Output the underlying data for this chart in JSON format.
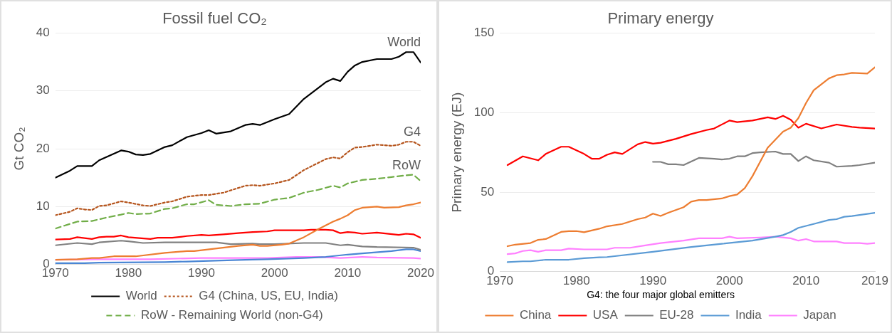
{
  "chart_data": [
    {
      "type": "line",
      "title": "Fossil fuel CO₂",
      "ylabel": "Gt CO₂",
      "xlim": [
        1970,
        2020
      ],
      "xticks": [
        1970,
        1980,
        1990,
        2000,
        2010,
        2020
      ],
      "ylim": [
        0,
        40
      ],
      "yticks": [
        0,
        10,
        20,
        30,
        40
      ],
      "grid": "y",
      "legend": "bottom",
      "marker": "none",
      "annotations": [
        "World",
        "G4",
        "RoW"
      ],
      "series": [
        {
          "name": "World",
          "color": "#000000",
          "line_style": "solid",
          "x": [
            1970,
            1972,
            1973,
            1975,
            1976,
            1979,
            1980,
            1981,
            1982,
            1983,
            1985,
            1986,
            1988,
            1990,
            1991,
            1992,
            1994,
            1996,
            1997,
            1998,
            2000,
            2002,
            2004,
            2007,
            2008,
            2009,
            2010,
            2011,
            2012,
            2014,
            2016,
            2017,
            2018,
            2019,
            2020
          ],
          "values": [
            15,
            16.2,
            17,
            17,
            18,
            19.7,
            19.5,
            19,
            18.9,
            19.1,
            20.3,
            20.6,
            22,
            22.7,
            23.2,
            22.6,
            23,
            24.1,
            24.3,
            24.1,
            25.1,
            26,
            28.6,
            31.5,
            32.1,
            31.7,
            33.3,
            34.4,
            35,
            35.5,
            35.5,
            35.9,
            36.7,
            36.7,
            34.9
          ]
        },
        {
          "name": "G4 (China, US, EU, India)",
          "color": "#b5541c",
          "line_style": "dotted",
          "x": [
            1970,
            1972,
            1973,
            1974,
            1975,
            1976,
            1977,
            1979,
            1980,
            1982,
            1983,
            1985,
            1986,
            1988,
            1990,
            1991,
            1993,
            1996,
            1997,
            1998,
            2000,
            2002,
            2004,
            2007,
            2008,
            2009,
            2010,
            2011,
            2012,
            2014,
            2016,
            2017,
            2018,
            2019,
            2020
          ],
          "values": [
            8.5,
            9.1,
            9.7,
            9.5,
            9.4,
            10.1,
            10.2,
            10.9,
            10.7,
            10.2,
            10.1,
            10.7,
            10.9,
            11.7,
            12,
            12,
            12.4,
            13.6,
            13.7,
            13.6,
            14,
            14.6,
            16.3,
            18.2,
            18.5,
            18.3,
            19.4,
            20.2,
            20.3,
            20.7,
            20.5,
            20.7,
            21.2,
            21.2,
            20.5
          ]
        },
        {
          "name": "RoW - Remaining World (non-G4)",
          "color": "#70ad47",
          "line_style": "dashed",
          "x": [
            1970,
            1972,
            1973,
            1975,
            1977,
            1979,
            1980,
            1981,
            1983,
            1985,
            1986,
            1988,
            1989,
            1991,
            1992,
            1994,
            1996,
            1998,
            2000,
            2002,
            2004,
            2006,
            2008,
            2009,
            2010,
            2012,
            2014,
            2016,
            2018,
            2019,
            2020
          ],
          "values": [
            6.2,
            7,
            7.4,
            7.5,
            8.1,
            8.6,
            8.9,
            8.7,
            8.8,
            9.6,
            9.7,
            10.4,
            10.4,
            11.1,
            10.3,
            10.1,
            10.4,
            10.5,
            11.2,
            11.5,
            12.4,
            12.9,
            13.6,
            13.3,
            14,
            14.6,
            14.8,
            15.1,
            15.4,
            15.5,
            14.4
          ]
        },
        {
          "color": "#ed7d31",
          "line_style": "solid",
          "x": [
            1970,
            1973,
            1975,
            1976,
            1978,
            1981,
            1985,
            1988,
            1989,
            1995,
            1997,
            1998,
            1999,
            2001,
            2002,
            2004,
            2006,
            2008,
            2009,
            2010,
            2011,
            2012,
            2014,
            2015,
            2017,
            2018,
            2019,
            2020
          ],
          "values": [
            0.8,
            0.9,
            1.1,
            1.1,
            1.4,
            1.4,
            2,
            2.3,
            2.3,
            3.2,
            3.4,
            3.2,
            3.2,
            3.4,
            3.6,
            4.7,
            6.1,
            7.4,
            7.9,
            8.5,
            9.4,
            9.8,
            10,
            9.8,
            9.9,
            10.2,
            10.4,
            10.7
          ]
        },
        {
          "color": "#ff0000",
          "line_style": "solid",
          "x": [
            1970,
            1972,
            1973,
            1975,
            1976,
            1977,
            1978,
            1979,
            1980,
            1983,
            1984,
            1986,
            1988,
            1990,
            1991,
            1993,
            1995,
            1997,
            1999,
            2000,
            2004,
            2005,
            2007,
            2008,
            2009,
            2010,
            2011,
            2012,
            2014,
            2017,
            2018,
            2019,
            2020
          ],
          "values": [
            4.3,
            4.4,
            4.7,
            4.4,
            4.7,
            4.8,
            4.8,
            5,
            4.7,
            4.4,
            4.6,
            4.6,
            4.9,
            5.1,
            5,
            5.2,
            5.4,
            5.6,
            5.7,
            5.9,
            5.9,
            6,
            6,
            5.9,
            5.4,
            5.6,
            5.5,
            5.3,
            5.5,
            5.1,
            5.3,
            5.2,
            4.6
          ]
        },
        {
          "color": "#808080",
          "line_style": "solid",
          "x": [
            1970,
            1973,
            1975,
            1976,
            1979,
            1980,
            1982,
            1985,
            1992,
            1994,
            1997,
            1998,
            2000,
            2004,
            2007,
            2009,
            2010,
            2012,
            2014,
            2019,
            2020
          ],
          "values": [
            3.3,
            3.7,
            3.5,
            3.8,
            4.1,
            4,
            3.7,
            3.8,
            3.8,
            3.5,
            3.6,
            3.5,
            3.5,
            3.7,
            3.7,
            3.3,
            3.4,
            3.1,
            3,
            2.9,
            2.5
          ]
        },
        {
          "color": "#4a86d4",
          "line_style": "solid",
          "x": [
            1970,
            1974,
            1976,
            1985,
            1988,
            1991,
            1996,
            1999,
            2004,
            2007,
            2010,
            2012,
            2016,
            2018,
            2019,
            2020
          ],
          "values": [
            0.2,
            0.2,
            0.3,
            0.4,
            0.5,
            0.6,
            0.8,
            0.9,
            1.1,
            1.3,
            1.7,
            1.9,
            2.3,
            2.6,
            2.6,
            2.3
          ]
        },
        {
          "color": "#ff80ff",
          "line_style": "solid",
          "x": [
            1970,
            1976,
            1983,
            1990,
            1999,
            2003,
            2006,
            2009,
            2012,
            2014,
            2019,
            2020
          ],
          "values": [
            0.8,
            0.9,
            0.9,
            1.1,
            1.1,
            1.3,
            1.3,
            1.1,
            1.3,
            1.2,
            1.1,
            1
          ]
        }
      ]
    },
    {
      "type": "line",
      "title": "Primary energy",
      "ylabel": "Primary energy (EJ)",
      "xlim": [
        1970,
        2019
      ],
      "xticks": [
        1970,
        1980,
        1990,
        2000,
        2010,
        2019
      ],
      "ylim": [
        0,
        150
      ],
      "yticks": [
        0,
        50,
        100,
        150
      ],
      "grid": "y",
      "legend": "bottom",
      "legend_title": "G4: the four major global emitters",
      "marker": "none",
      "series": [
        {
          "name": "China",
          "color": "#ed7d31",
          "x": [
            1971,
            1972,
            1974,
            1975,
            1976,
            1978,
            1979,
            1980,
            1981,
            1983,
            1984,
            1986,
            1988,
            1989,
            1990,
            1991,
            1992,
            1994,
            1995,
            1996,
            1997,
            1999,
            2000,
            2001,
            2002,
            2003,
            2004,
            2005,
            2007,
            2008,
            2009,
            2010,
            2011,
            2013,
            2014,
            2015,
            2016,
            2018,
            2019
          ],
          "values": [
            16,
            17,
            18,
            20,
            20.5,
            25,
            25.5,
            25.5,
            24.8,
            27,
            28.5,
            30,
            33,
            34,
            36.5,
            35,
            37,
            40.5,
            44,
            45,
            45,
            46,
            47.5,
            48.5,
            52.5,
            60,
            69,
            78,
            88,
            90.5,
            96.5,
            106,
            114,
            121.5,
            123.5,
            124,
            125,
            124.5,
            128.5
          ]
        },
        {
          "name": "USA",
          "color": "#ff0000",
          "x": [
            1971,
            1973,
            1975,
            1976,
            1978,
            1979,
            1981,
            1982,
            1983,
            1984,
            1985,
            1986,
            1988,
            1989,
            1990,
            1991,
            1993,
            1995,
            1997,
            1998,
            2000,
            2001,
            2003,
            2005,
            2006,
            2007,
            2008,
            2009,
            2010,
            2012,
            2014,
            2016,
            2017,
            2019
          ],
          "values": [
            67,
            72.5,
            70,
            74,
            78.5,
            78.5,
            74,
            71,
            71,
            73.5,
            75,
            74,
            80,
            81.5,
            80.5,
            81,
            83.5,
            86.5,
            89,
            90,
            95,
            94,
            95,
            97,
            96,
            98,
            95.5,
            90.5,
            93,
            90,
            92.5,
            91,
            90.5,
            90
          ]
        },
        {
          "name": "EU-28",
          "color": "#808080",
          "x": [
            1990,
            1991,
            1992,
            1993,
            1994,
            1996,
            1998,
            1999,
            2000,
            2001,
            2002,
            2003,
            2004,
            2006,
            2007,
            2008,
            2009,
            2010,
            2011,
            2013,
            2014,
            2016,
            2017,
            2019
          ],
          "values": [
            69,
            69,
            67.5,
            67.5,
            67,
            71.5,
            71,
            70.5,
            71,
            72.5,
            72.5,
            74.5,
            75,
            75.5,
            74,
            74,
            69.5,
            72.5,
            70,
            68.5,
            66,
            66.5,
            67,
            68.5
          ]
        },
        {
          "name": "India",
          "color": "#5b9bd5",
          "x": [
            1971,
            1973,
            1974,
            1976,
            1979,
            1981,
            1983,
            1984,
            1990,
            1995,
            1999,
            2003,
            2006,
            2007,
            2008,
            2009,
            2011,
            2013,
            2014,
            2015,
            2016,
            2019
          ],
          "values": [
            6,
            6.5,
            6.5,
            7.5,
            7.5,
            8.5,
            9,
            9.2,
            12.5,
            15.5,
            17.5,
            19.5,
            22,
            23,
            25,
            27.5,
            30,
            32.5,
            33,
            34.5,
            35,
            37
          ]
        },
        {
          "name": "Japan",
          "color": "#ff80ff",
          "x": [
            1971,
            1972,
            1973,
            1974,
            1975,
            1976,
            1978,
            1979,
            1981,
            1984,
            1985,
            1987,
            1989,
            1991,
            1994,
            1996,
            1999,
            2000,
            2001,
            2004,
            2006,
            2008,
            2009,
            2010,
            2011,
            2014,
            2015,
            2017,
            2018,
            2019
          ],
          "values": [
            11,
            11.5,
            13,
            13.5,
            12.5,
            13.5,
            13.5,
            14.5,
            14,
            14,
            15,
            15,
            16.5,
            18,
            19.5,
            21,
            21,
            22,
            21,
            21.5,
            22,
            21,
            19.5,
            20.5,
            19,
            19,
            18,
            18,
            17.5,
            18
          ]
        }
      ]
    }
  ]
}
